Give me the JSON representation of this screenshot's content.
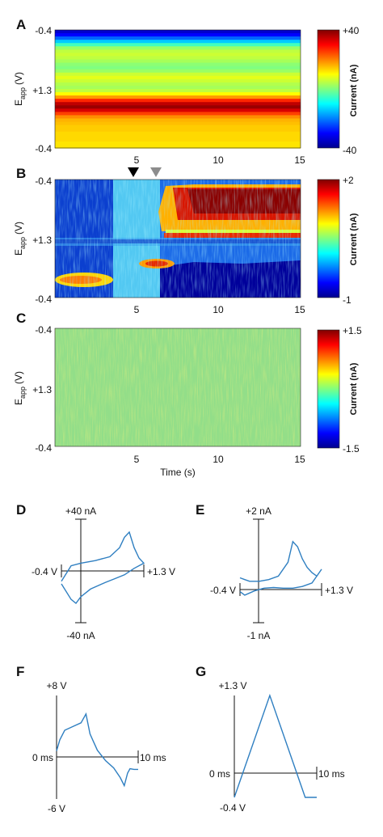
{
  "chart_data": [
    {
      "panel": "A",
      "type": "heatmap",
      "xlabel": "",
      "ylabel": "E_app (V)",
      "ylabel_main": "E",
      "ylabel_sub": "app",
      "ylabel_unit": "(V)",
      "x_ticks": [
        "5",
        "10",
        "15"
      ],
      "y_ticks": [
        "-0.4",
        "+1.3",
        "-0.4"
      ],
      "xlim": [
        0,
        15
      ],
      "colorbar": {
        "label": "Current (nA)",
        "max_label": "+40",
        "min_label": "-40",
        "range": [
          -40,
          40
        ]
      },
      "row_profile": [
        -34,
        -30,
        -22,
        -14,
        -5,
        2,
        5,
        6,
        5,
        3,
        1,
        0,
        2,
        6,
        8,
        6,
        4,
        3,
        5,
        10,
        18,
        27,
        35,
        38,
        33,
        25,
        19,
        16,
        15,
        14,
        14,
        13,
        13,
        13,
        12,
        12
      ]
    },
    {
      "panel": "B",
      "type": "heatmap",
      "xlabel": "",
      "ylabel": "E_app (V)",
      "ylabel_main": "E",
      "ylabel_sub": "app",
      "ylabel_unit": "(V)",
      "x_ticks": [
        "5",
        "10",
        "15"
      ],
      "y_ticks": [
        "-0.4",
        "+1.3",
        "-0.4"
      ],
      "xlim": [
        0,
        15
      ],
      "colorbar": {
        "label": "Current (nA)",
        "max_label": "+2",
        "min_label": "-1",
        "range": [
          -1,
          2
        ]
      },
      "markers": [
        {
          "x": 4.8,
          "color": "#000000"
        },
        {
          "x": 6.3,
          "color": "#8c8c8c"
        }
      ]
    },
    {
      "panel": "C",
      "type": "heatmap",
      "xlabel": "Time (s)",
      "ylabel": "E_app (V)",
      "ylabel_main": "E",
      "ylabel_sub": "app",
      "ylabel_unit": "(V)",
      "x_ticks": [
        "5",
        "10",
        "15"
      ],
      "y_ticks": [
        "-0.4",
        "+1.3",
        "-0.4"
      ],
      "xlim": [
        0,
        15
      ],
      "colorbar": {
        "label": "Current (nA)",
        "max_label": "+1.5",
        "min_label": "-1.5",
        "range": [
          -1.5,
          1.5
        ]
      }
    },
    {
      "panel": "D",
      "type": "line",
      "xlabel_left": "-0.4 V",
      "xlabel_right": "+1.3 V",
      "ylabel_top": "+40 nA",
      "ylabel_bottom": "-40 nA",
      "xlim": [
        -0.4,
        1.3
      ],
      "ylim": [
        -40,
        40
      ],
      "series": [
        {
          "x": [
            -0.4,
            -0.2,
            0.0,
            0.3,
            0.6,
            0.8,
            0.9,
            1.0,
            1.1,
            1.2,
            1.3,
            1.1,
            0.9,
            0.7,
            0.5,
            0.2,
            0.0,
            -0.1,
            -0.2,
            -0.4
          ],
          "y": [
            -8,
            4,
            6,
            8,
            11,
            18,
            26,
            30,
            18,
            10,
            6,
            2,
            -3,
            -6,
            -9,
            -14,
            -20,
            -25,
            -22,
            -10
          ]
        }
      ]
    },
    {
      "panel": "E",
      "type": "line",
      "xlabel_left": "-0.4 V",
      "xlabel_right": "+1.3 V",
      "ylabel_top": "+2 nA",
      "ylabel_bottom": "-1 nA",
      "xlim": [
        -0.4,
        1.3
      ],
      "ylim": [
        -1,
        2
      ],
      "series": [
        {
          "x": [
            -0.4,
            -0.3,
            -0.2,
            0.0,
            0.2,
            0.4,
            0.6,
            0.7,
            0.8,
            0.9,
            1.0,
            1.1,
            1.2,
            1.3,
            1.1,
            0.9,
            0.7,
            0.5,
            0.3,
            0.1,
            -0.1,
            -0.3,
            -0.4
          ],
          "y": [
            0.3,
            0.25,
            0.2,
            0.2,
            0.25,
            0.35,
            0.75,
            1.35,
            1.2,
            0.85,
            0.6,
            0.45,
            0.35,
            0.55,
            0.15,
            0.05,
            0.0,
            0.0,
            0.02,
            0.0,
            -0.08,
            -0.2,
            -0.1
          ]
        }
      ]
    },
    {
      "panel": "F",
      "type": "line",
      "xlabel_left": "0 ms",
      "xlabel_right": "10 ms",
      "ylabel_top": "+8 V",
      "ylabel_bottom": "-6 V",
      "xlim": [
        0,
        10
      ],
      "ylim": [
        -6,
        8
      ],
      "series": [
        {
          "x": [
            0,
            0.4,
            1.0,
            2.0,
            3.0,
            3.6,
            4.1,
            4.5,
            5.0,
            6.0,
            7.0,
            7.8,
            8.3,
            8.7,
            9.0,
            9.5,
            10.0
          ],
          "y": [
            0.5,
            2.0,
            3.3,
            3.8,
            4.3,
            5.5,
            2.8,
            1.8,
            0.6,
            -0.8,
            -1.8,
            -3.1,
            -4.2,
            -2.5,
            -1.9,
            -2.0,
            -2.0
          ]
        }
      ]
    },
    {
      "panel": "G",
      "type": "line",
      "xlabel_left": "0 ms",
      "xlabel_right": "10 ms",
      "ylabel_top": "+1.3 V",
      "ylabel_bottom": "-0.4 V",
      "xlim": [
        0,
        10
      ],
      "ylim": [
        -0.4,
        1.3
      ],
      "series": [
        {
          "x": [
            0,
            4.3,
            8.6,
            10.0
          ],
          "y": [
            -0.4,
            1.3,
            -0.4,
            -0.4
          ]
        }
      ]
    }
  ]
}
